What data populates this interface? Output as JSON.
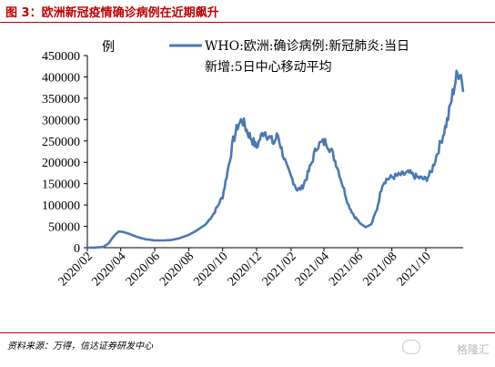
{
  "header": {
    "title": "图 3：欧洲新冠疫情确诊病例在近期飙升"
  },
  "footer": {
    "source": "资料来源：万得，信达证券研发中心",
    "watermark": "格隆汇"
  },
  "colors": {
    "title": "#c00000",
    "series": "#4a78b5"
  },
  "chart_data": {
    "type": "line",
    "ylabel": "例",
    "ylim": [
      0,
      450000
    ],
    "yticks": [
      0,
      50000,
      100000,
      150000,
      200000,
      250000,
      300000,
      350000,
      400000,
      450000
    ],
    "ytick_labels": [
      "0",
      "50000",
      "100000",
      "150000",
      "200000",
      "250000",
      "300000",
      "350000",
      "400000",
      "450000"
    ],
    "xlim": [
      "2020-02-01",
      "2021-12-07"
    ],
    "xticks": [
      "2020-02-01",
      "2020-04-01",
      "2020-06-01",
      "2020-08-01",
      "2020-10-01",
      "2020-12-01",
      "2021-02-01",
      "2021-04-01",
      "2021-06-01",
      "2021-08-01",
      "2021-10-01"
    ],
    "xtick_labels": [
      "2020/02",
      "2020/04",
      "2020/06",
      "2020/08",
      "2020/10",
      "2020/12",
      "2021/02",
      "2021/04",
      "2021/06",
      "2021/08",
      "2021/10"
    ],
    "legend": "top-right",
    "series": [
      {
        "name": "WHO:欧洲:确诊病例:新冠肺炎:当日新增:5日中心移动平均",
        "color": "#4a78b5",
        "points": [
          [
            "2020-02-01",
            0
          ],
          [
            "2020-02-15",
            200
          ],
          [
            "2020-03-01",
            2000
          ],
          [
            "2020-03-10",
            10000
          ],
          [
            "2020-03-20",
            28000
          ],
          [
            "2020-03-28",
            38000
          ],
          [
            "2020-04-05",
            37000
          ],
          [
            "2020-04-15",
            33000
          ],
          [
            "2020-05-01",
            25000
          ],
          [
            "2020-05-15",
            20000
          ],
          [
            "2020-06-01",
            17000
          ],
          [
            "2020-06-15",
            17000
          ],
          [
            "2020-07-01",
            18000
          ],
          [
            "2020-07-15",
            22000
          ],
          [
            "2020-08-01",
            30000
          ],
          [
            "2020-08-15",
            40000
          ],
          [
            "2020-09-01",
            55000
          ],
          [
            "2020-09-15",
            80000
          ],
          [
            "2020-10-01",
            120000
          ],
          [
            "2020-10-10",
            180000
          ],
          [
            "2020-10-20",
            250000
          ],
          [
            "2020-10-28",
            285000
          ],
          [
            "2020-11-05",
            300000
          ],
          [
            "2020-11-10",
            285000
          ],
          [
            "2020-11-15",
            270000
          ],
          [
            "2020-11-22",
            255000
          ],
          [
            "2020-12-01",
            235000
          ],
          [
            "2020-12-07",
            255000
          ],
          [
            "2020-12-15",
            275000
          ],
          [
            "2020-12-22",
            260000
          ],
          [
            "2021-01-01",
            245000
          ],
          [
            "2021-01-08",
            265000
          ],
          [
            "2021-01-15",
            230000
          ],
          [
            "2021-01-25",
            185000
          ],
          [
            "2021-02-05",
            155000
          ],
          [
            "2021-02-12",
            135000
          ],
          [
            "2021-02-20",
            140000
          ],
          [
            "2021-03-01",
            165000
          ],
          [
            "2021-03-10",
            200000
          ],
          [
            "2021-03-20",
            240000
          ],
          [
            "2021-03-28",
            245000
          ],
          [
            "2021-04-05",
            248000
          ],
          [
            "2021-04-15",
            225000
          ],
          [
            "2021-04-25",
            190000
          ],
          [
            "2021-05-05",
            145000
          ],
          [
            "2021-05-15",
            100000
          ],
          [
            "2021-05-25",
            75000
          ],
          [
            "2021-06-05",
            57000
          ],
          [
            "2021-06-15",
            48000
          ],
          [
            "2021-06-25",
            55000
          ],
          [
            "2021-07-05",
            90000
          ],
          [
            "2021-07-15",
            150000
          ],
          [
            "2021-07-22",
            160000
          ],
          [
            "2021-08-01",
            165000
          ],
          [
            "2021-08-15",
            170000
          ],
          [
            "2021-09-01",
            175000
          ],
          [
            "2021-09-15",
            165000
          ],
          [
            "2021-10-01",
            160000
          ],
          [
            "2021-10-10",
            175000
          ],
          [
            "2021-10-20",
            215000
          ],
          [
            "2021-11-01",
            265000
          ],
          [
            "2021-11-10",
            305000
          ],
          [
            "2021-11-18",
            360000
          ],
          [
            "2021-11-25",
            400000
          ],
          [
            "2021-12-01",
            415000
          ],
          [
            "2021-12-05",
            395000
          ],
          [
            "2021-12-07",
            365000
          ]
        ]
      }
    ]
  }
}
